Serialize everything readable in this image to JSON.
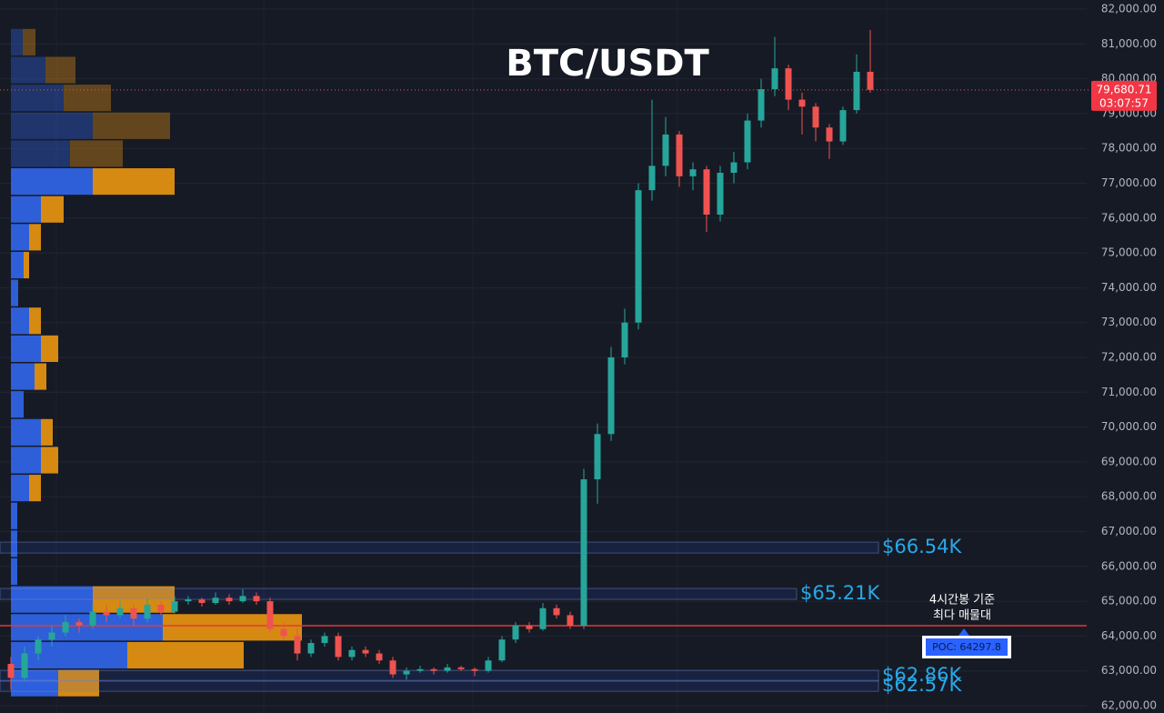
{
  "chart_data": {
    "type": "candlestick",
    "title": "BTC/USDT",
    "up_color": "#26a69a",
    "down_color": "#ef5350",
    "open": [
      63200,
      62800,
      63500,
      63900,
      64100,
      64400,
      64300,
      64700,
      64600,
      64800,
      64500,
      64900,
      64700,
      65000,
      65050,
      64950,
      65100,
      65000,
      65150,
      65000,
      64200,
      64000,
      63500,
      63800,
      64000,
      63400,
      63600,
      63500,
      63300,
      62900,
      63000,
      63050,
      63000,
      63100,
      63050,
      63000,
      63300,
      63900,
      64300,
      64200,
      64800,
      64600,
      64300,
      68500,
      69800,
      72000,
      73000,
      76800,
      77500,
      78400,
      77200,
      77400,
      76100,
      77300,
      77600,
      78800,
      79700,
      80300,
      79400,
      79200,
      78600,
      78200,
      79100,
      80200
    ],
    "high": [
      63400,
      63700,
      64000,
      64300,
      64600,
      64500,
      64900,
      64900,
      65000,
      64900,
      65100,
      65000,
      65150,
      65150,
      65100,
      65250,
      65200,
      65350,
      65250,
      65100,
      64400,
      64200,
      63900,
      64100,
      64100,
      63700,
      63700,
      63600,
      63400,
      63100,
      63150,
      63100,
      63200,
      63150,
      63100,
      63400,
      64000,
      64400,
      64400,
      64950,
      64900,
      64700,
      68800,
      70100,
      72300,
      73400,
      77000,
      79400,
      78900,
      78500,
      77600,
      77500,
      77500,
      77900,
      79000,
      80000,
      81200,
      80400,
      79600,
      79300,
      78700,
      79200,
      80700,
      81400
    ],
    "low": [
      62450,
      62700,
      63300,
      63700,
      64000,
      64100,
      64200,
      64400,
      64500,
      64300,
      64400,
      64600,
      64650,
      64900,
      64850,
      64900,
      64900,
      64950,
      64900,
      64100,
      63900,
      63300,
      63400,
      63700,
      63300,
      63300,
      63400,
      63200,
      62800,
      62750,
      62950,
      62900,
      62950,
      63000,
      62850,
      62950,
      63250,
      63800,
      64100,
      64150,
      64500,
      64200,
      64200,
      67800,
      69600,
      71800,
      72800,
      76500,
      77200,
      76900,
      76800,
      75600,
      75900,
      77000,
      77400,
      78600,
      79500,
      79100,
      78400,
      78200,
      77700,
      78100,
      79000,
      79600
    ],
    "close": [
      62800,
      63500,
      63900,
      64100,
      64400,
      64300,
      64700,
      64600,
      64800,
      64500,
      64900,
      64700,
      65000,
      65050,
      64950,
      65100,
      65000,
      65150,
      65000,
      64200,
      64000,
      63500,
      63800,
      64000,
      63400,
      63600,
      63500,
      63300,
      62900,
      63000,
      63050,
      63000,
      63100,
      63050,
      63000,
      63300,
      63900,
      64300,
      64200,
      64800,
      64600,
      64300,
      68500,
      69800,
      72000,
      73000,
      76800,
      77500,
      78400,
      77200,
      77400,
      76100,
      77300,
      77600,
      78800,
      79700,
      80300,
      79400,
      79200,
      78600,
      78200,
      79100,
      80200,
      79680.71
    ],
    "ylim": [
      62000,
      82000
    ],
    "yticks": [
      {
        "value": 62000,
        "label": "62,000.00"
      },
      {
        "value": 63000,
        "label": "63,000.00"
      },
      {
        "value": 64000,
        "label": "64,000.00"
      },
      {
        "value": 65000,
        "label": "65,000.00"
      },
      {
        "value": 66000,
        "label": "66,000.00"
      },
      {
        "value": 67000,
        "label": "67,000.00"
      },
      {
        "value": 68000,
        "label": "68,000.00"
      },
      {
        "value": 69000,
        "label": "69,000.00"
      },
      {
        "value": 70000,
        "label": "70,000.00"
      },
      {
        "value": 71000,
        "label": "71,000.00"
      },
      {
        "value": 72000,
        "label": "72,000.00"
      },
      {
        "value": 73000,
        "label": "73,000.00"
      },
      {
        "value": 74000,
        "label": "74,000.00"
      },
      {
        "value": 75000,
        "label": "75,000.00"
      },
      {
        "value": 76000,
        "label": "76,000.00"
      },
      {
        "value": 77000,
        "label": "77,000.00"
      },
      {
        "value": 78000,
        "label": "78,000.00"
      },
      {
        "value": 79000,
        "label": "79,000.00"
      },
      {
        "value": 80000,
        "label": "80,000.00"
      },
      {
        "value": 81000,
        "label": "81,000.00"
      },
      {
        "value": 82000,
        "label": "82,000.00"
      }
    ],
    "grid": true,
    "last_price": {
      "value": 79680.71,
      "label": "79,680.71"
    },
    "countdown": "03:07:57",
    "profile": {
      "bins": [
        62250,
        63050,
        63850,
        64650,
        65450,
        66250,
        67050,
        67850,
        68650,
        69450,
        70250,
        71050,
        71850,
        72650,
        73450,
        74250,
        75050,
        75850,
        76650,
        77450,
        78250,
        79050,
        79850,
        80650,
        81450
      ],
      "buy": [
        52,
        128,
        167,
        90,
        7,
        7,
        7,
        20,
        33,
        33,
        14,
        26,
        33,
        20,
        8,
        14,
        20,
        33,
        90,
        65,
        90,
        58,
        38,
        13
      ],
      "sell": [
        45,
        128,
        153,
        90,
        0,
        0,
        0,
        13,
        19,
        13,
        0,
        13,
        19,
        13,
        0,
        6,
        13,
        25,
        90,
        58,
        85,
        52,
        33,
        14
      ],
      "buy_color": "#2e5fd8",
      "sell_color": "#d68a12",
      "value_area": [
        62250,
        77450
      ]
    },
    "zones": [
      {
        "price": 66540,
        "label": "$66.54K"
      },
      {
        "price": 65210,
        "label": "$65.21K"
      },
      {
        "price": 62860,
        "label": "$62.86K"
      },
      {
        "price": 62570,
        "label": "$62.57K"
      }
    ],
    "poc": {
      "value": 64297.8,
      "label": "POC: 64297.8"
    },
    "poc_note": [
      "4시간봉 기준",
      "최다 매물대"
    ]
  }
}
